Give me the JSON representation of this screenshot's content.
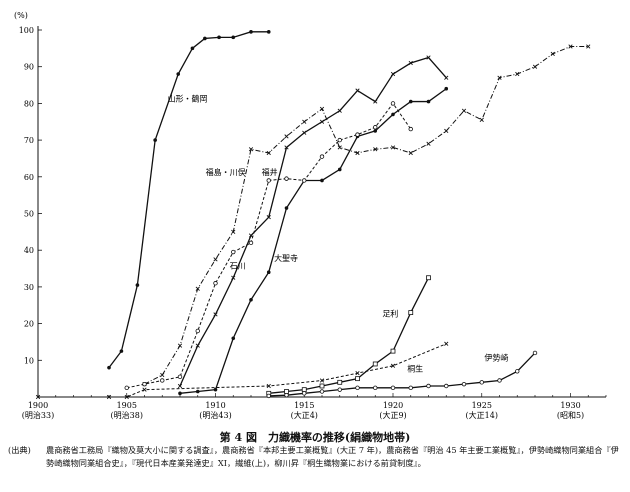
{
  "chart_data": {
    "type": "line",
    "title": "",
    "xlabel": "",
    "ylabel": "(%)",
    "xlim": [
      1900,
      1932
    ],
    "ylim": [
      0,
      100
    ],
    "x_ticks": [
      {
        "value": 1900,
        "label": "1900",
        "sub": "(明治33)"
      },
      {
        "value": 1905,
        "label": "1905",
        "sub": "(明治38)"
      },
      {
        "value": 1910,
        "label": "1910",
        "sub": "(明治43)"
      },
      {
        "value": 1915,
        "label": "1915",
        "sub": "(大正4)"
      },
      {
        "value": 1920,
        "label": "1920",
        "sub": "(大正9)"
      },
      {
        "value": 1925,
        "label": "1925",
        "sub": "(大正14)"
      },
      {
        "value": 1930,
        "label": "1930",
        "sub": "(昭和5)"
      }
    ],
    "y_ticks": [
      10,
      20,
      30,
      40,
      50,
      60,
      70,
      80,
      90,
      100
    ],
    "series": [
      {
        "name": "山形・鶴岡",
        "line": "solid",
        "marker": "dot",
        "points": [
          [
            1904,
            8
          ],
          [
            1904.7,
            12.5
          ],
          [
            1905.6,
            30.5
          ],
          [
            1906.6,
            70
          ],
          [
            1907.9,
            88
          ],
          [
            1908.7,
            95
          ],
          [
            1909.4,
            97.7
          ],
          [
            1910.2,
            98
          ],
          [
            1911,
            98
          ],
          [
            1912,
            99.5
          ],
          [
            1913,
            99.5
          ]
        ]
      },
      {
        "name": "福島・川俣",
        "line": "dashdot",
        "marker": "cross",
        "points": [
          [
            1906,
            3.5
          ],
          [
            1907,
            6
          ],
          [
            1908,
            14
          ],
          [
            1909,
            29.5
          ],
          [
            1910,
            37.5
          ],
          [
            1911,
            45
          ],
          [
            1912,
            67.5
          ],
          [
            1913,
            66.5
          ],
          [
            1914,
            71
          ],
          [
            1915,
            75
          ],
          [
            1916,
            78.5
          ],
          [
            1917,
            68
          ],
          [
            1918,
            66.5
          ],
          [
            1919,
            67.5
          ],
          [
            1920,
            68
          ],
          [
            1921,
            66.5
          ],
          [
            1922,
            69
          ],
          [
            1923,
            72.5
          ],
          [
            1924,
            78
          ],
          [
            1925,
            75.5
          ],
          [
            1926,
            87
          ],
          [
            1927,
            88
          ],
          [
            1928,
            90
          ],
          [
            1929,
            93.5
          ],
          [
            1930,
            95.5
          ],
          [
            1931,
            95.5
          ]
        ]
      },
      {
        "name": "福井",
        "line": "solid",
        "marker": "cross",
        "points": [
          [
            1908,
            3
          ],
          [
            1909,
            14
          ],
          [
            1910,
            22.5
          ],
          [
            1911,
            32.5
          ],
          [
            1912,
            44
          ],
          [
            1913,
            49
          ],
          [
            1914,
            68
          ],
          [
            1915,
            72
          ],
          [
            1916,
            75
          ],
          [
            1917,
            78
          ],
          [
            1918,
            83.5
          ],
          [
            1919,
            80.5
          ],
          [
            1920,
            88
          ],
          [
            1921,
            91
          ],
          [
            1922,
            92.5
          ],
          [
            1923,
            87
          ]
        ]
      },
      {
        "name": "石川",
        "line": "solid",
        "marker": "dot",
        "points": [
          [
            1908,
            1
          ],
          [
            1909,
            1.5
          ],
          [
            1910,
            2
          ],
          [
            1911,
            16
          ],
          [
            1912,
            26.5
          ],
          [
            1913,
            34
          ],
          [
            1914,
            51.5
          ],
          [
            1915,
            59
          ],
          [
            1916,
            59
          ],
          [
            1917,
            62
          ],
          [
            1918,
            71
          ],
          [
            1919,
            72.5
          ],
          [
            1920,
            77
          ],
          [
            1921,
            80.5
          ],
          [
            1922,
            80.5
          ],
          [
            1923,
            84
          ]
        ]
      },
      {
        "name": "大聖寺",
        "line": "dashed",
        "marker": "circle",
        "points": [
          [
            1905,
            2.5
          ],
          [
            1906,
            3.5
          ],
          [
            1907,
            4.5
          ],
          [
            1908,
            5.5
          ],
          [
            1909,
            18
          ],
          [
            1910,
            31
          ],
          [
            1911,
            39.5
          ],
          [
            1912,
            42
          ],
          [
            1913,
            59
          ],
          [
            1914,
            59.5
          ],
          [
            1915,
            59
          ],
          [
            1916,
            65.5
          ],
          [
            1917,
            70
          ],
          [
            1918,
            71.5
          ],
          [
            1919,
            73.5
          ],
          [
            1920,
            80
          ],
          [
            1921,
            73
          ]
        ]
      },
      {
        "name": "足利",
        "line": "solid",
        "marker": "square",
        "points": [
          [
            1913,
            1
          ],
          [
            1914,
            1.5
          ],
          [
            1915,
            2
          ],
          [
            1916,
            3
          ],
          [
            1917,
            4
          ],
          [
            1918,
            5
          ],
          [
            1919,
            9
          ],
          [
            1920,
            12.5
          ],
          [
            1921,
            23
          ],
          [
            1922,
            32.5
          ]
        ]
      },
      {
        "name": "桐生",
        "line": "dashed",
        "marker": "cross",
        "points": [
          [
            1900,
            0
          ],
          [
            1904,
            0
          ],
          [
            1905,
            0
          ],
          [
            1906,
            2
          ],
          [
            1913,
            3
          ],
          [
            1916,
            4.5
          ],
          [
            1918,
            6.5
          ],
          [
            1920,
            8.5
          ],
          [
            1923,
            14.5
          ]
        ]
      },
      {
        "name": "伊勢崎",
        "line": "solid",
        "marker": "circle",
        "points": [
          [
            1913,
            0.3
          ],
          [
            1914,
            0.5
          ],
          [
            1915,
            1
          ],
          [
            1916,
            1.5
          ],
          [
            1917,
            2
          ],
          [
            1918,
            2.5
          ],
          [
            1919,
            2.5
          ],
          [
            1920,
            2.5
          ],
          [
            1921,
            2.5
          ],
          [
            1922,
            3
          ],
          [
            1923,
            3
          ],
          [
            1924,
            3.5
          ],
          [
            1925,
            4
          ],
          [
            1926,
            4.5
          ],
          [
            1927,
            7
          ],
          [
            1928,
            12
          ]
        ]
      }
    ],
    "series_label_positions": [
      {
        "name": "山形・鶴岡",
        "anchor": "start"
      },
      {
        "name": "福島・川俣",
        "anchor": "end"
      },
      {
        "name": "福井",
        "anchor": "end"
      },
      {
        "name": "石川",
        "anchor": "end"
      },
      {
        "name": "大聖寺",
        "anchor": "start"
      },
      {
        "name": "足利",
        "anchor": "end"
      },
      {
        "name": "桐生",
        "anchor": "start"
      },
      {
        "name": "伊勢崎",
        "anchor": "end"
      }
    ]
  },
  "figure_title": "第 4 図　力織機率の推移(絹織物地帯)",
  "source_prefix": "(出典)",
  "source_text": "農商務省工務局『織物及莫大小に関する調査』，農商務省『本邦主要工業概覧』(大正 7 年)，農商務省『明治 45 年主要工業概覧』，伊勢崎織物同業組合『伊勢崎織物同業組合史』，『現代日本産業発達史』XI，繊維(上)，柳川昇『桐生織物業における前貸制度』。"
}
